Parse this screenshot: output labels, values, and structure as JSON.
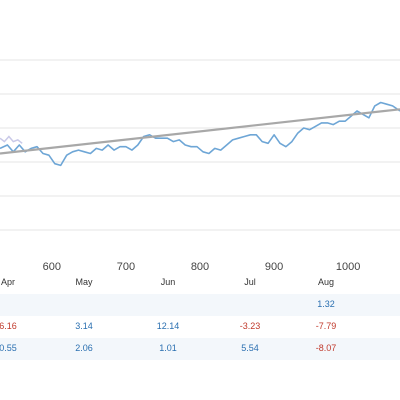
{
  "chart_data": {
    "type": "line",
    "x_ticks": [
      600,
      700,
      800,
      900,
      1000
    ],
    "xlim": [
      530,
      1070
    ],
    "ylim": [
      0,
      100
    ],
    "colors": {
      "series": "#6ea6d6",
      "faded": "#c9c9e8",
      "trend": "#a8a8a8",
      "grid": "#e6e6e6"
    },
    "series": [
      {
        "x": [
          530,
          540,
          548,
          556,
          564,
          572,
          580,
          588,
          596,
          604,
          612,
          620,
          628,
          636,
          644,
          652,
          660,
          668,
          676,
          684,
          692,
          700,
          708,
          716,
          724,
          732,
          740,
          748,
          756,
          764,
          772,
          780,
          788,
          796,
          804,
          812,
          820,
          828,
          836,
          844,
          852,
          860,
          868,
          876,
          884,
          892,
          900,
          908,
          916,
          924,
          932,
          940,
          948,
          956,
          964,
          972,
          980,
          988,
          996,
          1004,
          1012,
          1020,
          1028,
          1036,
          1044,
          1052,
          1060,
          1070
        ],
        "y": [
          48,
          50,
          46,
          50,
          46,
          48,
          49,
          45,
          44,
          39,
          38,
          44,
          46,
          47,
          46,
          45,
          48,
          47,
          50,
          47,
          49,
          49,
          47,
          50,
          55,
          56,
          54,
          54,
          54,
          52,
          53,
          50,
          49,
          49,
          46,
          45,
          48,
          47,
          50,
          53,
          54,
          55,
          56,
          56,
          52,
          51,
          56,
          51,
          49,
          52,
          57,
          60,
          59,
          61,
          63,
          63,
          62,
          64,
          64,
          67,
          70,
          68,
          66,
          73,
          75,
          74,
          73,
          70
        ]
      }
    ],
    "faded_series": {
      "x": [
        530,
        536,
        542,
        548,
        554,
        560
      ],
      "y": [
        54,
        52,
        55,
        52,
        53,
        51
      ]
    },
    "trend": {
      "x": [
        530,
        1070
      ],
      "y": [
        45,
        71
      ]
    }
  },
  "table": {
    "months": [
      {
        "name": "Apr",
        "r1": "",
        "r2": "6.16",
        "r3": "0.55"
      },
      {
        "name": "May",
        "r1": "",
        "r2": "3.14",
        "r3": "2.06"
      },
      {
        "name": "Jun",
        "r1": "",
        "r2": "12.14",
        "r3": "1.01"
      },
      {
        "name": "Jul",
        "r1": "",
        "r2": "-3.23",
        "r3": "5.54"
      },
      {
        "name": "Aug",
        "r1": "1.32",
        "r2": "-7.79",
        "r3": "-8.07"
      }
    ]
  }
}
